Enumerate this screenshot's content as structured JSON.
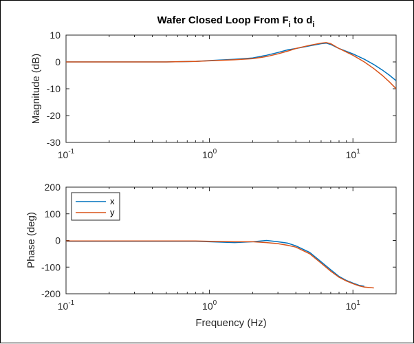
{
  "colors": {
    "x": "#0072BD",
    "y": "#D95319",
    "axis": "#262626",
    "grid": "#e6e6e6"
  },
  "chart_data": [
    {
      "type": "line",
      "title_main": "Wafer Closed Loop From F",
      "title_sub1": "i",
      "title_mid": " to d",
      "title_sub2": "i",
      "xlabel": "",
      "ylabel": "Magnitude (dB)",
      "xscale": "log",
      "xlim": [
        0.1,
        20
      ],
      "ylim": [
        -30,
        10
      ],
      "yticks": [
        10,
        0,
        -10,
        -20,
        -30
      ],
      "xtick_labels": [
        {
          "base": "10",
          "exp": "-1"
        },
        {
          "base": "10",
          "exp": "0"
        },
        {
          "base": "10",
          "exp": "1"
        }
      ],
      "series": [
        {
          "name": "x",
          "color": "#0072BD",
          "x": [
            0.1,
            0.2,
            0.5,
            0.8,
            1.0,
            1.5,
            2.0,
            2.5,
            3.0,
            3.5,
            4.0,
            5.0,
            6.0,
            6.5,
            7.0,
            8.0,
            10.0,
            12.0,
            14.0,
            16.0,
            18.0,
            20.0
          ],
          "y": [
            0,
            0,
            0,
            0.2,
            0.5,
            1.0,
            1.5,
            2.5,
            3.5,
            4.5,
            5.0,
            6.0,
            6.8,
            7.0,
            6.5,
            5.0,
            3.0,
            1.0,
            -1.0,
            -3.0,
            -5.0,
            -7.0
          ]
        },
        {
          "name": "y",
          "color": "#D95319",
          "x": [
            0.1,
            0.2,
            0.5,
            0.8,
            1.0,
            1.5,
            2.0,
            2.5,
            3.0,
            3.5,
            4.0,
            5.0,
            6.0,
            6.5,
            7.0,
            8.0,
            10.0,
            12.0,
            14.0,
            16.0,
            18.0,
            20.0
          ],
          "y": [
            0,
            0,
            0,
            0.2,
            0.4,
            0.8,
            1.2,
            2.0,
            3.0,
            4.0,
            5.0,
            6.2,
            7.0,
            7.2,
            6.8,
            5.0,
            2.5,
            0,
            -2.5,
            -5.0,
            -7.5,
            -10.0
          ]
        }
      ]
    },
    {
      "type": "line",
      "xlabel": "Frequency (Hz)",
      "ylabel": "Phase (deg)",
      "xscale": "log",
      "xlim": [
        0.1,
        20
      ],
      "ylim": [
        -200,
        200
      ],
      "yticks": [
        200,
        100,
        0,
        -100,
        -200
      ],
      "xtick_labels": [
        {
          "base": "10",
          "exp": "-1"
        },
        {
          "base": "10",
          "exp": "0"
        },
        {
          "base": "10",
          "exp": "1"
        }
      ],
      "legend": {
        "entries": [
          "x",
          "y"
        ],
        "placement": "top-left"
      },
      "series": [
        {
          "name": "x",
          "color": "#0072BD",
          "x": [
            0.1,
            0.2,
            0.5,
            0.8,
            1.0,
            1.5,
            2.0,
            2.5,
            3.0,
            3.5,
            4.0,
            5.0,
            6.0,
            7.0,
            8.0,
            9.0,
            10.0,
            11.0,
            12.0
          ],
          "y": [
            -3,
            -3,
            -3,
            -3,
            -5,
            -8,
            -5,
            0,
            -5,
            -10,
            -20,
            -45,
            -80,
            -110,
            -135,
            -150,
            -160,
            -168,
            -172
          ]
        },
        {
          "name": "y",
          "color": "#D95319",
          "x": [
            0.1,
            0.2,
            0.5,
            0.8,
            1.0,
            1.5,
            2.0,
            2.5,
            3.0,
            3.5,
            4.0,
            5.0,
            6.0,
            7.0,
            8.0,
            9.0,
            10.0,
            11.0,
            12.0,
            14.0
          ],
          "y": [
            -2,
            -2,
            -2,
            -2,
            -3,
            -5,
            -5,
            -8,
            -12,
            -18,
            -25,
            -50,
            -85,
            -115,
            -138,
            -152,
            -162,
            -170,
            -175,
            -178
          ]
        }
      ]
    }
  ]
}
